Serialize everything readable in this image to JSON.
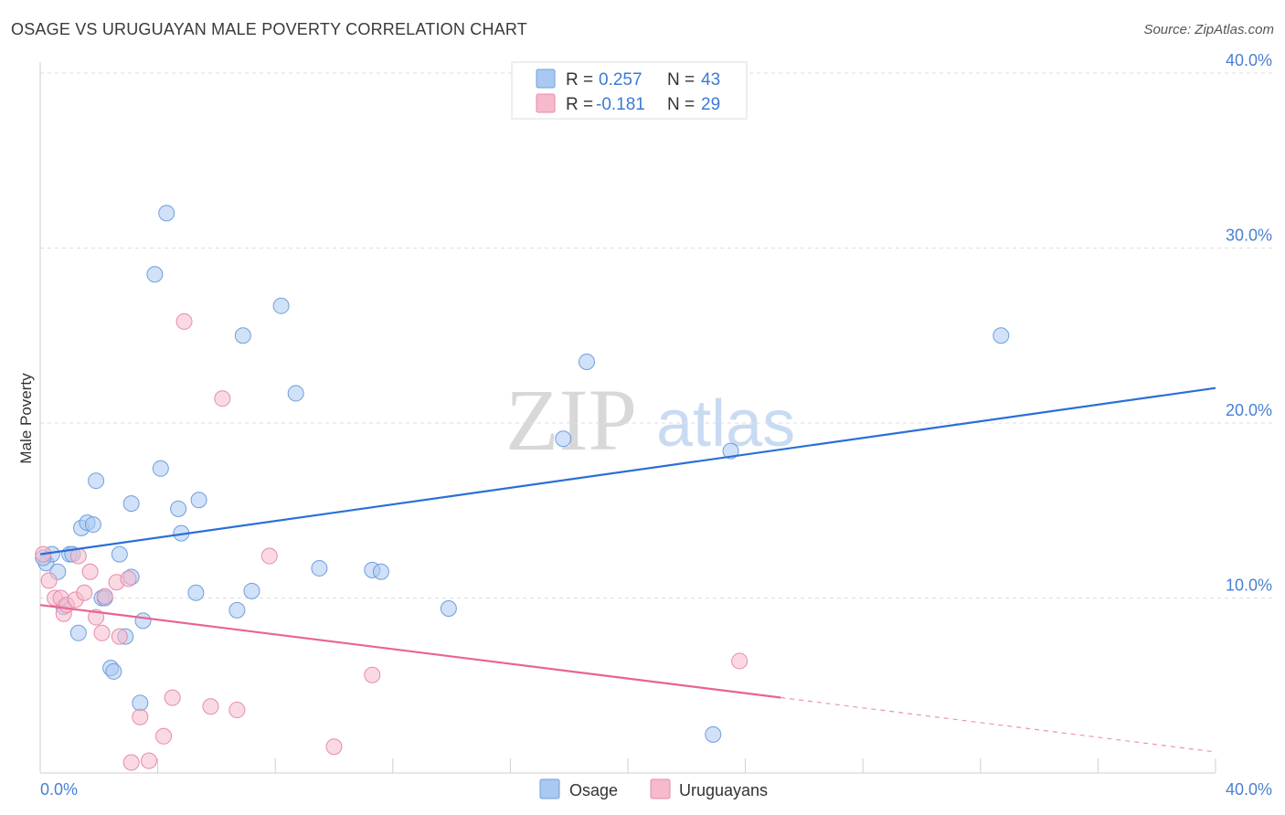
{
  "header": {
    "title": "OSAGE VS URUGUAYAN MALE POVERTY CORRELATION CHART",
    "source": "Source: ZipAtlas.com"
  },
  "watermark": {
    "zip": "ZIP",
    "atlas": "atlas"
  },
  "legend": {
    "rows": [
      {
        "r_label": "R =",
        "r_value": "0.257",
        "n_label": "N =",
        "n_value": "43",
        "color": "#a9c8f2"
      },
      {
        "r_label": "R =",
        "r_value": "-0.181",
        "n_label": "N =",
        "n_value": "29",
        "color": "#f7b9cc"
      }
    ]
  },
  "bottom_legend": {
    "osage": "Osage",
    "uruguayans": "Uruguayans"
  },
  "chart_data": {
    "type": "scatter",
    "title": "OSAGE VS URUGUAYAN MALE POVERTY CORRELATION CHART",
    "xlabel": "",
    "ylabel": "Male Poverty",
    "xlim": [
      0,
      40
    ],
    "ylim": [
      0,
      40
    ],
    "x_tick_labels": [
      "0.0%",
      "40.0%"
    ],
    "y_ticks": [
      10,
      20,
      30,
      40
    ],
    "y_tick_labels": [
      "10.0%",
      "20.0%",
      "30.0%",
      "40.0%"
    ],
    "grid": true,
    "series": [
      {
        "name": "Osage",
        "color": "#a9c8f2",
        "stroke": "#6f9fdc",
        "line_color": "#2a6fd6",
        "trend": {
          "x": [
            0,
            40
          ],
          "y": [
            12.5,
            22.0
          ],
          "dashed_from": null
        },
        "points": [
          {
            "x": 0.2,
            "y": 12.0
          },
          {
            "x": 0.4,
            "y": 12.5
          },
          {
            "x": 0.6,
            "y": 11.5
          },
          {
            "x": 0.8,
            "y": 9.5
          },
          {
            "x": 1.0,
            "y": 12.5
          },
          {
            "x": 1.1,
            "y": 12.5
          },
          {
            "x": 1.3,
            "y": 8.0
          },
          {
            "x": 1.4,
            "y": 14.0
          },
          {
            "x": 1.6,
            "y": 14.3
          },
          {
            "x": 1.8,
            "y": 14.2
          },
          {
            "x": 1.9,
            "y": 16.7
          },
          {
            "x": 2.1,
            "y": 10.0
          },
          {
            "x": 2.2,
            "y": 10.0
          },
          {
            "x": 2.4,
            "y": 6.0
          },
          {
            "x": 2.5,
            "y": 5.8
          },
          {
            "x": 2.7,
            "y": 12.5
          },
          {
            "x": 2.9,
            "y": 7.8
          },
          {
            "x": 3.1,
            "y": 11.2
          },
          {
            "x": 3.1,
            "y": 15.4
          },
          {
            "x": 3.4,
            "y": 4.0
          },
          {
            "x": 3.5,
            "y": 8.7
          },
          {
            "x": 3.9,
            "y": 28.5
          },
          {
            "x": 4.1,
            "y": 17.4
          },
          {
            "x": 4.3,
            "y": 32.0
          },
          {
            "x": 4.7,
            "y": 15.1
          },
          {
            "x": 4.8,
            "y": 13.7
          },
          {
            "x": 5.3,
            "y": 10.3
          },
          {
            "x": 5.4,
            "y": 15.6
          },
          {
            "x": 6.7,
            "y": 9.3
          },
          {
            "x": 6.9,
            "y": 25.0
          },
          {
            "x": 7.2,
            "y": 10.4
          },
          {
            "x": 8.2,
            "y": 26.7
          },
          {
            "x": 8.7,
            "y": 21.7
          },
          {
            "x": 9.5,
            "y": 11.7
          },
          {
            "x": 11.3,
            "y": 11.6
          },
          {
            "x": 11.6,
            "y": 11.5
          },
          {
            "x": 13.9,
            "y": 9.4
          },
          {
            "x": 17.8,
            "y": 19.1
          },
          {
            "x": 18.6,
            "y": 23.5
          },
          {
            "x": 22.9,
            "y": 2.2
          },
          {
            "x": 23.5,
            "y": 18.4
          },
          {
            "x": 32.7,
            "y": 25.0
          },
          {
            "x": 0.1,
            "y": 12.3
          }
        ]
      },
      {
        "name": "Uruguayans",
        "color": "#f7b9cc",
        "stroke": "#e68ba9",
        "line_color": "#e8648f",
        "trend": {
          "x": [
            0,
            40
          ],
          "y": [
            9.6,
            1.2
          ],
          "dashed_from": 25.2
        },
        "points": [
          {
            "x": 0.1,
            "y": 12.5
          },
          {
            "x": 0.3,
            "y": 11.0
          },
          {
            "x": 0.5,
            "y": 10.0
          },
          {
            "x": 0.7,
            "y": 10.0
          },
          {
            "x": 0.8,
            "y": 9.1
          },
          {
            "x": 0.9,
            "y": 9.6
          },
          {
            "x": 1.2,
            "y": 9.9
          },
          {
            "x": 1.3,
            "y": 12.4
          },
          {
            "x": 1.5,
            "y": 10.3
          },
          {
            "x": 1.7,
            "y": 11.5
          },
          {
            "x": 1.9,
            "y": 8.9
          },
          {
            "x": 2.1,
            "y": 8.0
          },
          {
            "x": 2.2,
            "y": 10.1
          },
          {
            "x": 2.6,
            "y": 10.9
          },
          {
            "x": 2.7,
            "y": 7.8
          },
          {
            "x": 3.0,
            "y": 11.1
          },
          {
            "x": 3.1,
            "y": 0.6
          },
          {
            "x": 3.4,
            "y": 3.2
          },
          {
            "x": 3.7,
            "y": 0.7
          },
          {
            "x": 4.2,
            "y": 2.1
          },
          {
            "x": 4.5,
            "y": 4.3
          },
          {
            "x": 4.9,
            "y": 25.8
          },
          {
            "x": 5.8,
            "y": 3.8
          },
          {
            "x": 6.2,
            "y": 21.4
          },
          {
            "x": 6.7,
            "y": 3.6
          },
          {
            "x": 7.8,
            "y": 12.4
          },
          {
            "x": 10.0,
            "y": 1.5
          },
          {
            "x": 11.3,
            "y": 5.6
          },
          {
            "x": 23.8,
            "y": 6.4
          }
        ]
      }
    ]
  }
}
